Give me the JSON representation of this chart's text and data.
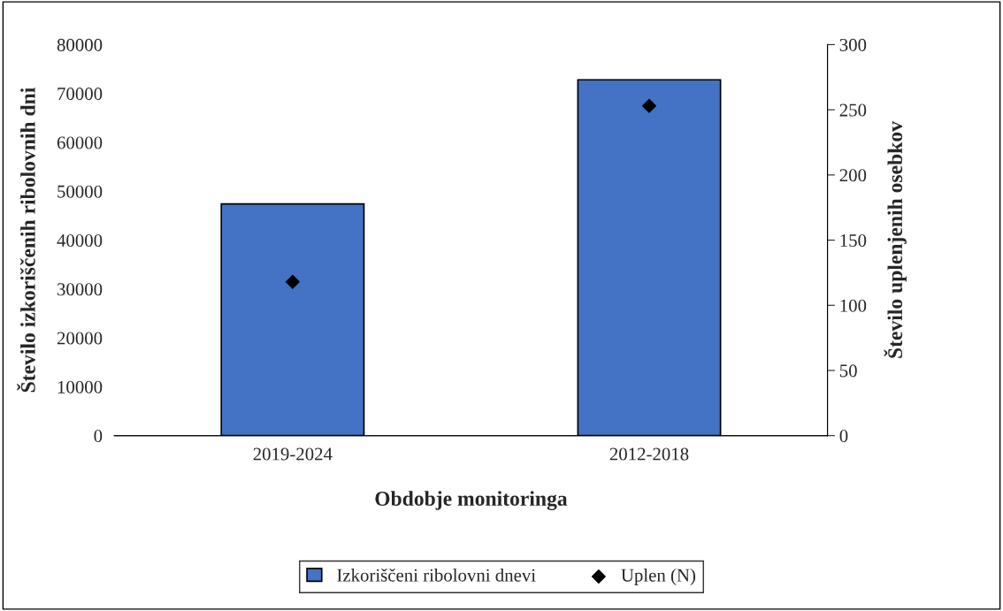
{
  "chart_data": {
    "type": "bar",
    "xlabel": "Obdobje monitoringa",
    "ylabel": "Število izkoriščenih ribolovnih dni",
    "y2label": "Število uplenjenih osebkov",
    "categories": [
      "2019-2024",
      "2012-2018"
    ],
    "series": [
      {
        "name": "Izkoriščeni ribolovni dnevi",
        "color": "#4472c4",
        "values": [
          47400,
          72800
        ]
      },
      {
        "name": "Uplen (N)",
        "type": "scatter",
        "axis": "y2",
        "color": "#000000",
        "marker": "diamond",
        "values": [
          118,
          253
        ]
      }
    ],
    "ylim": [
      0,
      80000
    ],
    "yticks": [
      0,
      10000,
      20000,
      30000,
      40000,
      50000,
      60000,
      70000,
      80000
    ],
    "y2lim": [
      0,
      300
    ],
    "y2ticks": [
      0,
      50,
      100,
      150,
      200,
      250,
      300
    ],
    "grid": false,
    "legend": "bottom"
  }
}
